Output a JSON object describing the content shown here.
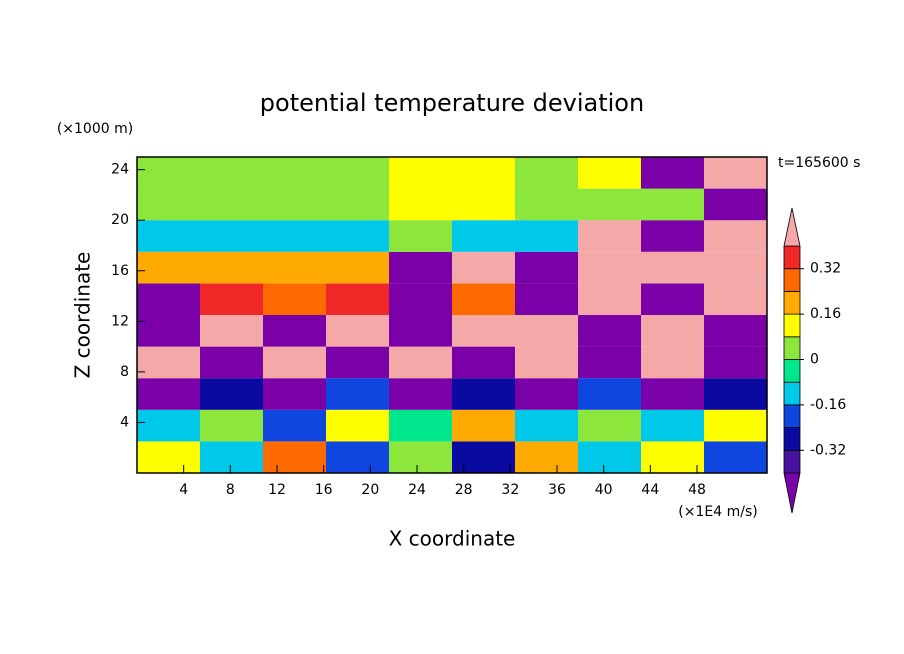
{
  "chart_data": {
    "type": "contour",
    "title": "potential temperature deviation",
    "x_label": "X coordinate",
    "y_label": "Z coordinate",
    "x_units": "(×1E4 m/s)",
    "y_units": "(×1000 m)",
    "time_label": "t=165600 s",
    "xlim": [
      0,
      54
    ],
    "ylim": [
      0,
      25
    ],
    "xticks": [
      4,
      8,
      12,
      16,
      20,
      24,
      28,
      32,
      36,
      40,
      44,
      48
    ],
    "yticks": [
      4,
      8,
      12,
      16,
      20,
      24
    ],
    "x": [
      2.7,
      8.1,
      13.5,
      18.9,
      24.3,
      29.7,
      35.1,
      40.5,
      45.9,
      51.3
    ],
    "y": [
      1.25,
      3.75,
      6.25,
      8.75,
      11.25,
      13.75,
      16.25,
      18.75,
      21.25,
      23.75
    ],
    "z": [
      [
        0.1,
        -0.1,
        0.3,
        -0.2,
        0.05,
        -0.3,
        0.2,
        -0.1,
        0.1,
        -0.2
      ],
      [
        -0.1,
        0.05,
        -0.2,
        0.1,
        -0.05,
        0.2,
        -0.15,
        0.05,
        -0.1,
        0.1
      ],
      [
        -0.45,
        -0.3,
        -0.45,
        -0.2,
        -0.45,
        -0.3,
        -0.45,
        -0.2,
        -0.45,
        -0.3
      ],
      [
        0.45,
        -0.45,
        0.45,
        -0.45,
        0.45,
        -0.45,
        0.45,
        -0.45,
        0.45,
        -0.45
      ],
      [
        -0.45,
        0.45,
        -0.45,
        0.45,
        -0.45,
        0.45,
        0.45,
        -0.45,
        0.45,
        -0.45
      ],
      [
        -0.45,
        0.35,
        0.3,
        0.35,
        -0.45,
        0.3,
        -0.45,
        0.45,
        -0.45,
        0.45
      ],
      [
        0.2,
        0.2,
        0.18,
        0.2,
        -0.45,
        0.45,
        -0.45,
        0.45,
        0.45,
        0.45
      ],
      [
        -0.1,
        -0.1,
        -0.1,
        -0.1,
        0.05,
        -0.1,
        -0.1,
        0.45,
        -0.45,
        0.45
      ],
      [
        0.05,
        0.05,
        0.05,
        0.05,
        0.12,
        0.12,
        0.05,
        0.05,
        0.05,
        -0.45
      ],
      [
        0.05,
        0.05,
        0.05,
        0.05,
        0.12,
        0.1,
        0.05,
        0.1,
        -0.45,
        0.45
      ]
    ],
    "levels": [
      -0.4,
      -0.32,
      -0.24,
      -0.16,
      -0.08,
      0,
      0.08,
      0.16,
      0.24,
      0.32,
      0.4
    ],
    "colors": [
      "#7a00a8",
      "#4a12a0",
      "#0a0aa0",
      "#1046e0",
      "#00c8e8",
      "#00e68c",
      "#8ce63c",
      "#ffff00",
      "#ffaa00",
      "#ff6a00",
      "#f02828",
      "#f4a8a8"
    ],
    "colorbar_ticks": [
      -0.32,
      -0.16,
      0,
      0.16,
      0.32
    ]
  }
}
